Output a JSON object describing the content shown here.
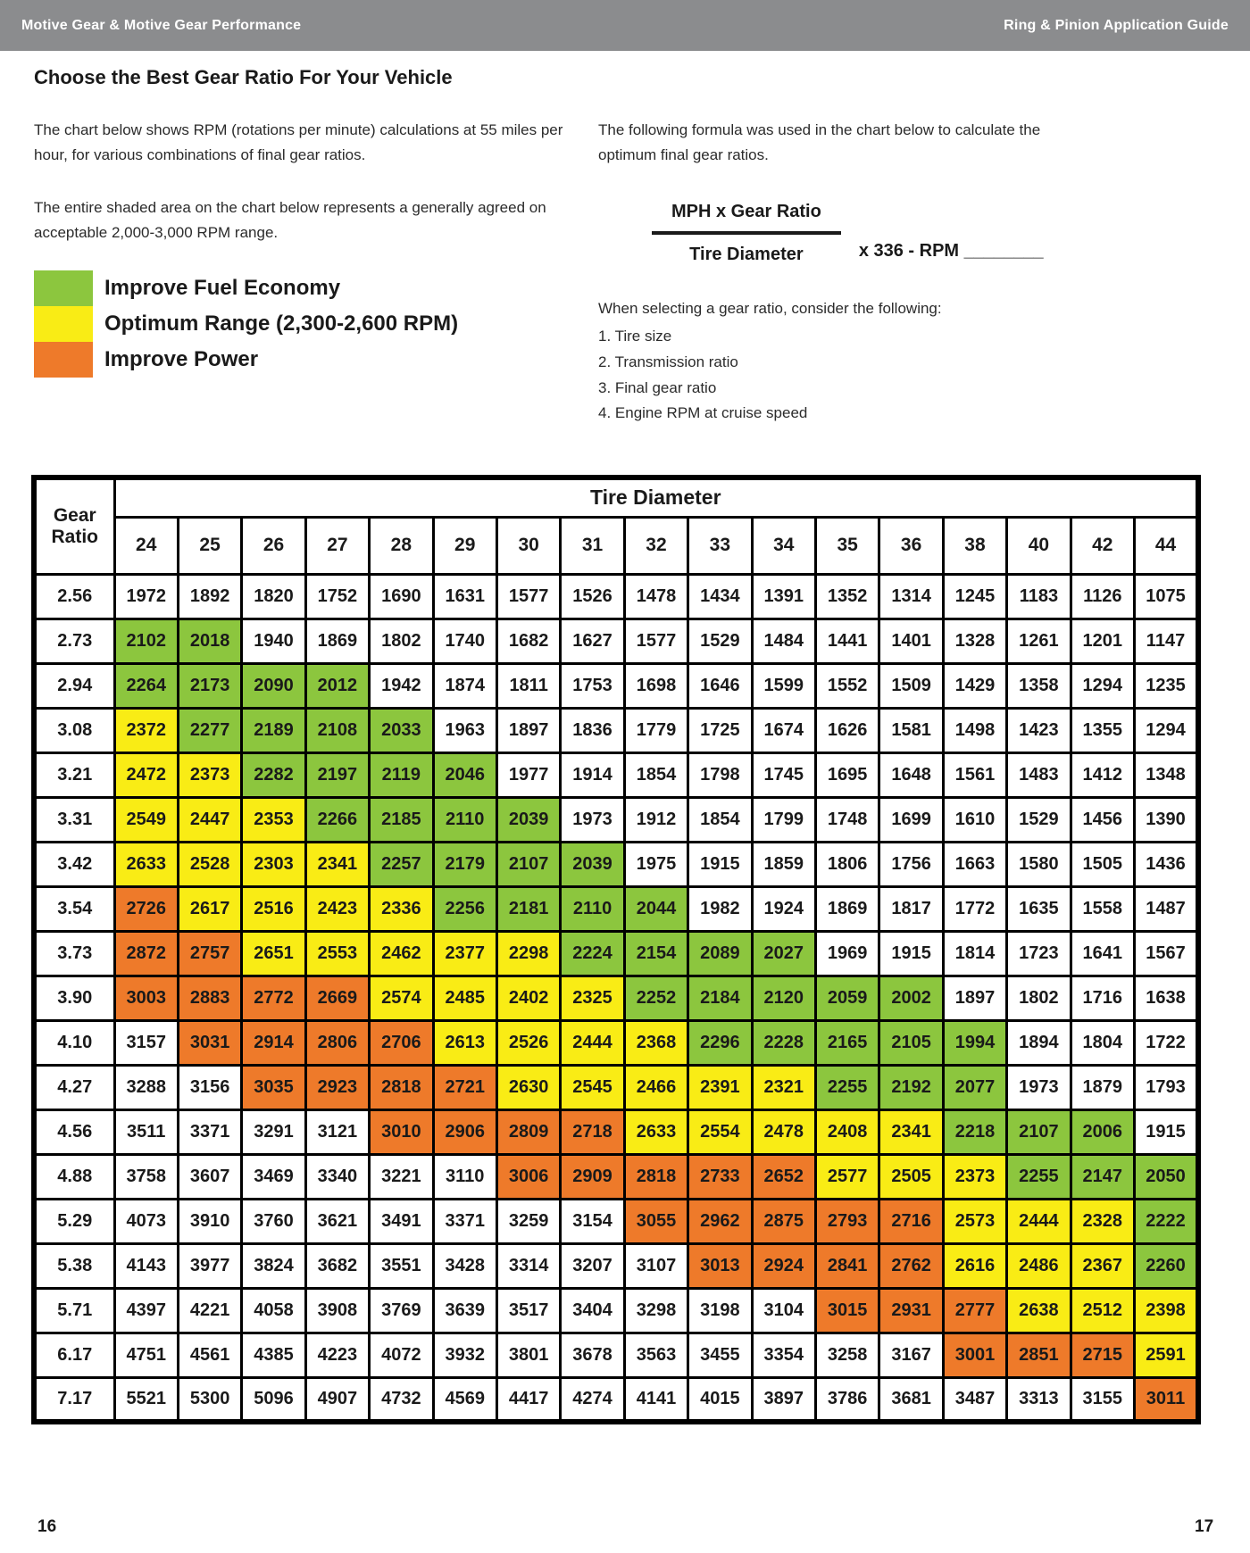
{
  "header_bar": {
    "left": "Motive Gear & Motive Gear Performance",
    "right": "Ring & Pinion Application Guide"
  },
  "page_title": "Choose the Best Gear Ratio For Your Vehicle",
  "intro": {
    "para1": "The chart below shows RPM (rotations per minute) calculations at 55 miles per hour, for various combinations of final gear ratios.",
    "para2": "The entire shaded area on the chart below represents a generally agreed on acceptable 2,000-3,000 RPM range."
  },
  "legend": {
    "items": [
      {
        "key": "green",
        "label": "Improve Fuel Economy",
        "color": "#8cc63e"
      },
      {
        "key": "yellow",
        "label": "Optimum Range (2,300-2,600 RPM)",
        "color": "#f9ec15"
      },
      {
        "key": "orange",
        "label": "Improve Power",
        "color": "#ee7a2a"
      }
    ]
  },
  "formula": {
    "intro": "The following formula was used in the chart below to calculate the optimum final gear ratios.",
    "numerator": "MPH x Gear Ratio",
    "denominator": "Tire Diameter",
    "suffix": "x 336 - RPM ________",
    "considerations_title": "When selecting a gear ratio, consider the following:",
    "considerations": [
      "1. Tire size",
      "2. Transmission ratio",
      "3. Final gear ratio",
      "4. Engine RPM at cruise speed"
    ]
  },
  "chart_data": {
    "type": "table",
    "title": "Tire Diameter",
    "row_header": "Gear Ratio",
    "columns": [
      24,
      25,
      26,
      27,
      28,
      29,
      30,
      31,
      32,
      33,
      34,
      35,
      36,
      38,
      40,
      42,
      44
    ],
    "color_key": {
      "W": "#ffffff",
      "G": "#8cc63e",
      "Y": "#f9ec15",
      "O": "#ee7a2a"
    },
    "color_meaning": {
      "G": "Improve Fuel Economy",
      "Y": "Optimum Range (2,300-2,600 RPM)",
      "O": "Improve Power"
    },
    "rows": [
      {
        "ratio": "2.56",
        "values": [
          1972,
          1892,
          1820,
          1752,
          1690,
          1631,
          1577,
          1526,
          1478,
          1434,
          1391,
          1352,
          1314,
          1245,
          1183,
          1126,
          1075
        ],
        "colors": "WWWWWWWWWWWWWWWWW"
      },
      {
        "ratio": "2.73",
        "values": [
          2102,
          2018,
          1940,
          1869,
          1802,
          1740,
          1682,
          1627,
          1577,
          1529,
          1484,
          1441,
          1401,
          1328,
          1261,
          1201,
          1147
        ],
        "colors": "GGWWWWWWWWWWWWWWW"
      },
      {
        "ratio": "2.94",
        "values": [
          2264,
          2173,
          2090,
          2012,
          1942,
          1874,
          1811,
          1753,
          1698,
          1646,
          1599,
          1552,
          1509,
          1429,
          1358,
          1294,
          1235
        ],
        "colors": "GGGGWWWWWWWWWWWWW"
      },
      {
        "ratio": "3.08",
        "values": [
          2372,
          2277,
          2189,
          2108,
          2033,
          1963,
          1897,
          1836,
          1779,
          1725,
          1674,
          1626,
          1581,
          1498,
          1423,
          1355,
          1294
        ],
        "colors": "YGGGGWWWWWWWWWWWW"
      },
      {
        "ratio": "3.21",
        "values": [
          2472,
          2373,
          2282,
          2197,
          2119,
          2046,
          1977,
          1914,
          1854,
          1798,
          1745,
          1695,
          1648,
          1561,
          1483,
          1412,
          1348
        ],
        "colors": "YYGGGGWWWWWWWWWWW"
      },
      {
        "ratio": "3.31",
        "values": [
          2549,
          2447,
          2353,
          2266,
          2185,
          2110,
          2039,
          1973,
          1912,
          1854,
          1799,
          1748,
          1699,
          1610,
          1529,
          1456,
          1390
        ],
        "colors": "YYYGGGGWWWWWWWWWW"
      },
      {
        "ratio": "3.42",
        "values": [
          2633,
          2528,
          2303,
          2341,
          2257,
          2179,
          2107,
          2039,
          1975,
          1915,
          1859,
          1806,
          1756,
          1663,
          1580,
          1505,
          1436
        ],
        "colors": "YYYYGGGGWWWWWWWWW"
      },
      {
        "ratio": "3.54",
        "values": [
          2726,
          2617,
          2516,
          2423,
          2336,
          2256,
          2181,
          2110,
          2044,
          1982,
          1924,
          1869,
          1817,
          1772,
          1635,
          1558,
          1487
        ],
        "colors": "OYYYYGGGGWWWWWWWW"
      },
      {
        "ratio": "3.73",
        "values": [
          2872,
          2757,
          2651,
          2553,
          2462,
          2377,
          2298,
          2224,
          2154,
          2089,
          2027,
          1969,
          1915,
          1814,
          1723,
          1641,
          1567
        ],
        "colors": "OOYYYYYGGGGWWWWWW"
      },
      {
        "ratio": "3.90",
        "values": [
          3003,
          2883,
          2772,
          2669,
          2574,
          2485,
          2402,
          2325,
          2252,
          2184,
          2120,
          2059,
          2002,
          1897,
          1802,
          1716,
          1638
        ],
        "colors": "OOOOYYYYGGGGGWWWW"
      },
      {
        "ratio": "4.10",
        "values": [
          3157,
          3031,
          2914,
          2806,
          2706,
          2613,
          2526,
          2444,
          2368,
          2296,
          2228,
          2165,
          2105,
          1994,
          1894,
          1804,
          1722
        ],
        "colors": "WOOOOYYYYGGGGGWWW"
      },
      {
        "ratio": "4.27",
        "values": [
          3288,
          3156,
          3035,
          2923,
          2818,
          2721,
          2630,
          2545,
          2466,
          2391,
          2321,
          2255,
          2192,
          2077,
          1973,
          1879,
          1793
        ],
        "colors": "WWOOOOYYYYYGGGWWW"
      },
      {
        "ratio": "4.56",
        "values": [
          3511,
          3371,
          3291,
          3121,
          3010,
          2906,
          2809,
          2718,
          2633,
          2554,
          2478,
          2408,
          2341,
          2218,
          2107,
          2006,
          1915
        ],
        "colors": "WWWWOOOOYYYYYGGGW"
      },
      {
        "ratio": "4.88",
        "values": [
          3758,
          3607,
          3469,
          3340,
          3221,
          3110,
          3006,
          2909,
          2818,
          2733,
          2652,
          2577,
          2505,
          2373,
          2255,
          2147,
          2050
        ],
        "colors": "WWWWWWOOOOOYYYGGG"
      },
      {
        "ratio": "5.29",
        "values": [
          4073,
          3910,
          3760,
          3621,
          3491,
          3371,
          3259,
          3154,
          3055,
          2962,
          2875,
          2793,
          2716,
          2573,
          2444,
          2328,
          2222
        ],
        "colors": "WWWWWWWWOOOOOYYYG"
      },
      {
        "ratio": "5.38",
        "values": [
          4143,
          3977,
          3824,
          3682,
          3551,
          3428,
          3314,
          3207,
          3107,
          3013,
          2924,
          2841,
          2762,
          2616,
          2486,
          2367,
          2260
        ],
        "colors": "WWWWWWWWWOOOOYYYG"
      },
      {
        "ratio": "5.71",
        "values": [
          4397,
          4221,
          4058,
          3908,
          3769,
          3639,
          3517,
          3404,
          3298,
          3198,
          3104,
          3015,
          2931,
          2777,
          2638,
          2512,
          2398
        ],
        "colors": "WWWWWWWWWWWOOOYYY"
      },
      {
        "ratio": "6.17",
        "values": [
          4751,
          4561,
          4385,
          4223,
          4072,
          3932,
          3801,
          3678,
          3563,
          3455,
          3354,
          3258,
          3167,
          3001,
          2851,
          2715,
          2591
        ],
        "colors": "WWWWWWWWWWWWWOOOY"
      },
      {
        "ratio": "7.17",
        "values": [
          5521,
          5300,
          5096,
          4907,
          4732,
          4569,
          4417,
          4274,
          4141,
          4015,
          3897,
          3786,
          3681,
          3487,
          3313,
          3155,
          3011
        ],
        "colors": "WWWWWWWWWWWWWWWWO"
      }
    ]
  },
  "footer": {
    "left_page": "16",
    "right_page": "17"
  }
}
